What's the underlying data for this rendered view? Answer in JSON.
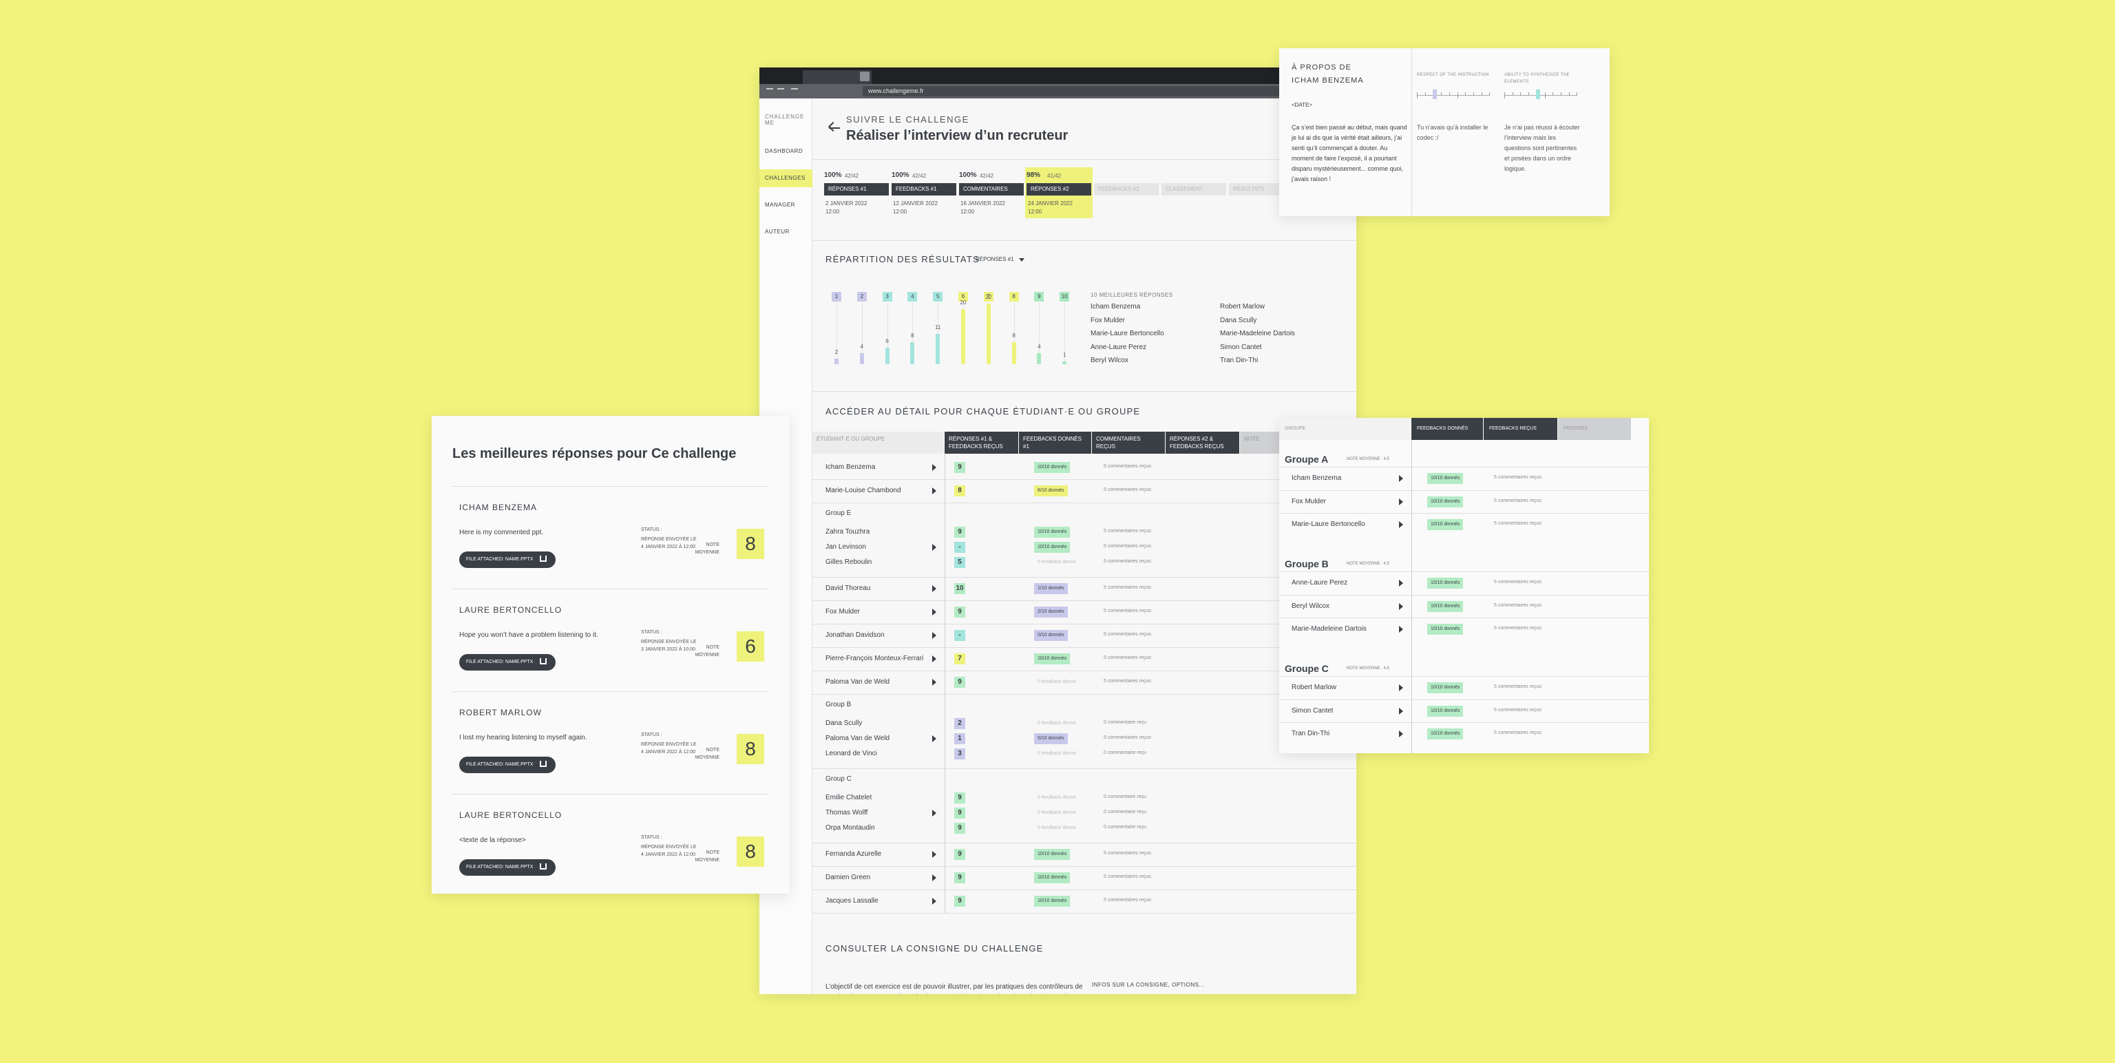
{
  "browser": {
    "url": "www.challengeme.fr"
  },
  "sidebar": {
    "brand": "CHALLENGE ME",
    "items": [
      "DASHBOARD",
      "CHALLENGES",
      "MANAGER",
      "AUTEUR"
    ],
    "active": 1
  },
  "header": {
    "kicker": "SUIVRE LE CHALLENGE",
    "title": "Réaliser l’interview d’un recruteur"
  },
  "timeline": {
    "current": 3,
    "steps": [
      {
        "percent": "100%",
        "count": "42/42",
        "label": "RÉPONSES #1",
        "date": "2 JANVIER 2022",
        "time": "12:00"
      },
      {
        "percent": "100%",
        "count": "42/42",
        "label": "FEEDBACKS #1",
        "date": "12 JANVIER 2022",
        "time": "12:00"
      },
      {
        "percent": "100%",
        "count": "42/42",
        "label": "COMMENTAIRES",
        "date": "16 JANVIER 2022",
        "time": "12:00"
      },
      {
        "percent": "98%",
        "count": "41/42",
        "label": "RÉPONSES #2",
        "date": "24 JANVIER 2022",
        "time": "12:00"
      },
      {
        "label": "FEEDBACKS #2"
      },
      {
        "label": "CLASSEMENT"
      },
      {
        "label": "RÉSULTATS"
      }
    ]
  },
  "distribution": {
    "title": "RÉPARTITION DES RÉSULTATS",
    "filter": "RÉPONSES #1",
    "categories": [
      1,
      2,
      3,
      4,
      5,
      6,
      7,
      8,
      9,
      10
    ],
    "values": [
      2,
      4,
      6,
      8,
      11,
      20,
      22,
      8,
      4,
      1
    ],
    "colors": [
      "#c8c9ea",
      "#c8c9ea",
      "#a3e4dd",
      "#a3e4dd",
      "#a3e4dd",
      "#eef27a",
      "#eef27a",
      "#eef27a",
      "#a8e8c0",
      "#a8e8c0"
    ],
    "top_title": "10 MEILLEURES RÉPONSES",
    "top": [
      "Icham Benzema",
      "Fox Mulder",
      "Marie-Laure Bertoncello",
      "Anne-Laure Perez",
      "Beryl Wilcox",
      "Robert Marlow",
      "Dana Scully",
      "Marie-Madeleine Dartois",
      "Simon Cantet",
      "Tran Din-Thi"
    ]
  },
  "detail": {
    "title": "ACCÉDER AU DÉTAIL POUR CHAQUE ÉTUDIANT·E OU GROUPE",
    "columns": [
      "ÉTUDIANT·E OU GROUPE",
      "RÉPONSES #1 & FEEDBACKS REÇUS",
      "FEEDBACKS DONNÉS #1",
      "COMMENTAIRES REÇUS",
      "RÉPONSES #2 & FEEDBACKS REÇUS",
      "NOTE"
    ],
    "rows": [
      {
        "name": "Icham Benzema",
        "grade": "9",
        "feedback": "10/10 donnés",
        "comments": "5 commentaires reçus"
      },
      {
        "name": "Marie-Louise Chambond",
        "grade": "8",
        "feedback": "8/10 donnés",
        "comments": "5 commentaires reçus"
      },
      {
        "group": "Group E",
        "members": [
          {
            "name": "Zahra Touzhra",
            "grade": "9",
            "feedback": "10/10 donnés",
            "comments": "5 commentaires reçus"
          },
          {
            "name": "Jan Levinson",
            "grade": "-",
            "feedback": "10/10 donnés",
            "comments": "5 commentaires reçus"
          },
          {
            "name": "Gilles Reboulin",
            "grade": "5",
            "feedback": "0 feedback donné",
            "comments": "5 commentaires reçus"
          }
        ]
      },
      {
        "name": "David Thoreau",
        "grade": "10",
        "feedback": "1/10 donnés",
        "comments": "5 commentaires reçus"
      },
      {
        "name": "Fox Mulder",
        "grade": "9",
        "feedback": "2/10 donnés",
        "comments": "5 commentaires reçus"
      },
      {
        "name": "Jonathan Davidson",
        "grade": "-",
        "feedback": "0/10 donnés",
        "comments": "5 commentaires reçus"
      },
      {
        "name": "Pierre-François Monteux-Ferrari",
        "grade": "7",
        "feedback": "10/10 donnés",
        "comments": "5 commentaires reçus"
      },
      {
        "name": "Paloma Van de Weld",
        "grade": "9",
        "feedback": "0 feedback donné",
        "comments": "5 commentaires reçus"
      },
      {
        "group": "Group B",
        "members": [
          {
            "name": "Dana Scully",
            "grade": "2",
            "feedback": "0 feedback donné",
            "comments": "0 commentaire reçu"
          },
          {
            "name": "Paloma Van de Weld",
            "grade": "1",
            "feedback": "5/10 donnés",
            "comments": "5 commentaires reçus"
          },
          {
            "name": "Leonard de Vinci",
            "grade": "3",
            "feedback": "0 feedback donné",
            "comments": "0 commentaire reçu"
          }
        ]
      },
      {
        "group": "Group C",
        "members": [
          {
            "name": "Emilie Chatelet",
            "grade": "9",
            "feedback": "0 feedback donné",
            "comments": "0 commentaire reçu"
          },
          {
            "name": "Thomas Wolff",
            "grade": "9",
            "feedback": "0 feedback donné",
            "comments": "0 commentaire reçu"
          },
          {
            "name": "Orpa Montaudin",
            "grade": "9",
            "feedback": "0 feedback donné",
            "comments": "0 commentaire reçu"
          }
        ]
      },
      {
        "name": "Fernanda Azurelle",
        "grade": "9",
        "feedback": "10/10 donnés",
        "comments": "5 commentaires reçus"
      },
      {
        "name": "Damien Green",
        "grade": "9",
        "feedback": "10/10 donnés",
        "comments": "5 commentaires reçus"
      },
      {
        "name": "Jacques Lassalle",
        "grade": "9",
        "feedback": "10/10 donnés",
        "comments": "5 commentaires reçus"
      }
    ]
  },
  "consigne": {
    "title": "CONSULTER LA CONSIGNE DU CHALLENGE",
    "text": "L’objectif de cet exercice est de pouvoir illustrer, par les pratiques des contrôleurs de gestion, les concepts présentés dans ce chapitre. Il convient donc d’analyser chacun des témoignages et de déterminer à quels concepts ou",
    "side": "INFOS SUR LA CONSIGNE, OPTIONS..."
  },
  "about": {
    "title": "À PROPOS DE",
    "name": "ICHAM BENZEMA",
    "date": "<DATE>",
    "text": "Ça s’est bien passé au début, mais quand je lui ai dis que la vérité était ailleurs, j’ai senti qu’il commençait à douter. Au moment de faire l’exposé, il a pourtant disparu mystérieusement... comme quoi, j’avais raison !",
    "criteria": [
      {
        "label": "RESPECT OF THE INSTRUCTION",
        "comment": "Tu n’avais qu’à installer le codec :/"
      },
      {
        "label": "ABILITY TO SYNTHESIZE THE ELEMENTS",
        "comment": "Je n’ai pas réussi à écouter l’interview mais les questions sont pertinentes et posées dans un ordre logique."
      }
    ]
  },
  "groups": {
    "columns": [
      "GROUPE",
      "FEEDBACKS DONNÉS",
      "FEEDBACKS REÇUS",
      "PROGRÈS"
    ],
    "items": [
      {
        "name": "Groupe A",
        "average": "NOTE MOYENNE : 4,5",
        "members": [
          {
            "name": "Icham Benzema",
            "feedback": "10/10 donnés",
            "comments": "5 commentaires reçus"
          },
          {
            "name": "Fox Mulder",
            "feedback": "10/10 donnés",
            "comments": "5 commentaires reçus"
          },
          {
            "name": "Marie-Laure Bertoncello",
            "feedback": "10/10 donnés",
            "comments": "5 commentaires reçus"
          }
        ]
      },
      {
        "name": "Groupe B",
        "average": "NOTE MOYENNE : 4,5",
        "members": [
          {
            "name": "Anne-Laure Perez",
            "feedback": "10/10 donnés",
            "comments": "5 commentaires reçus"
          },
          {
            "name": "Beryl Wilcox",
            "feedback": "10/10 donnés",
            "comments": "5 commentaires reçus"
          },
          {
            "name": "Marie-Madeleine Dartois",
            "feedback": "10/10 donnés",
            "comments": "5 commentaires reçus"
          }
        ]
      },
      {
        "name": "Groupe C",
        "average": "NOTE MOYENNE : 4,5",
        "members": [
          {
            "name": "Robert Marlow",
            "feedback": "10/10 donnés",
            "comments": "5 commentaires reçus"
          },
          {
            "name": "Simon Cantet",
            "feedback": "10/10 donnés",
            "comments": "5 commentaires reçus"
          },
          {
            "name": "Tran Din-Thi",
            "feedback": "10/10 donnés",
            "comments": "5 commentaires reçus"
          }
        ]
      }
    ]
  },
  "best": {
    "title": "Les meilleures réponses pour Ce challenge",
    "answers": [
      {
        "name": "ICHAM BENZEMA",
        "text": "Here is my commented ppt.",
        "status_label": "STATUS :",
        "status": "RÉPONSE ENVOYÉE LE 4 JANVIER 2022 À 12:00",
        "note_label": "NOTE MOYENNE",
        "note": "8",
        "file": "FILE ATTACHED: NAME.PPTX"
      },
      {
        "name": "LAURE BERTONCELLO",
        "text": "Hope you won’t have a problem listening to it.",
        "status_label": "STATUS :",
        "status": "RÉPONSE ENVOYÉE LE 3 JANVIER 2022 À 10:00",
        "note_label": "NOTE MOYENNE",
        "note": "6",
        "file": "FILE ATTACHED: NAME.PPTX"
      },
      {
        "name": "ROBERT MARLOW",
        "text": "I lost my hearing listening to myself again.",
        "status_label": "STATUS :",
        "status": "RÉPONSE ENVOYÉE LE 4 JANVIER 2022 À 12:00",
        "note_label": "NOTE MOYENNE",
        "note": "8",
        "file": "FILE ATTACHED: NAME.PPTX"
      },
      {
        "name": "LAURE BERTONCELLO",
        "text": "<texte de la réponse>",
        "status_label": "STATUS :",
        "status": "RÉPONSE ENVOYÉE LE 4 JANVIER 2022 À 12:00",
        "note_label": "NOTE MOYENNE",
        "note": "8",
        "file": "FILE ATTACHED: NAME.PPTX"
      }
    ]
  }
}
